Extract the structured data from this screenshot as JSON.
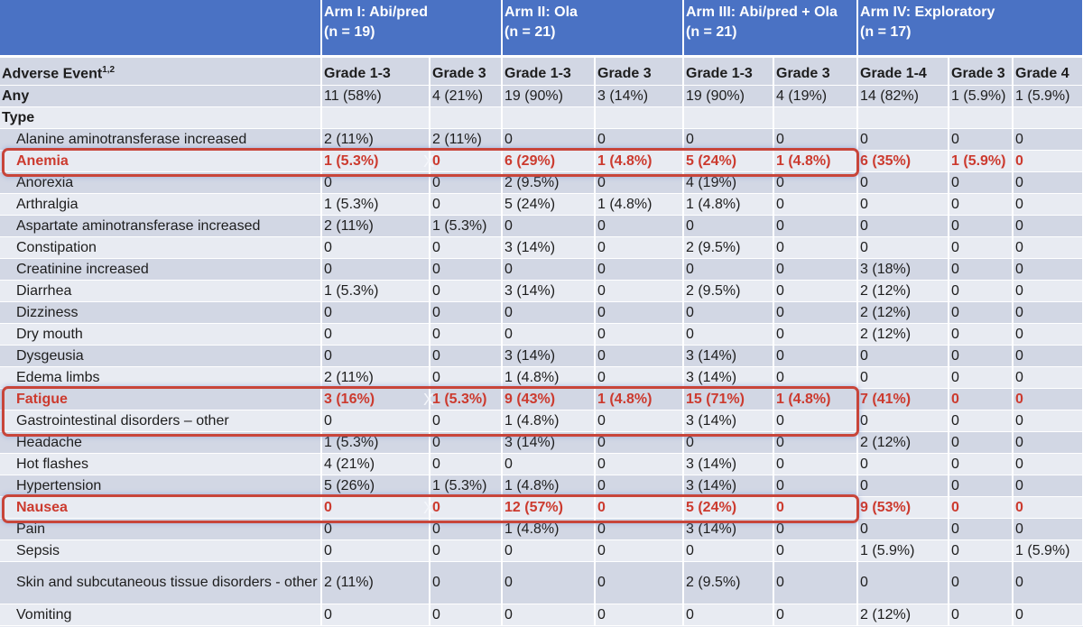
{
  "arms": [
    {
      "name": "Arm I: Abi/pred",
      "n": "(n = 19)"
    },
    {
      "name": "Arm II: Ola",
      "n": "(n = 21)"
    },
    {
      "name": "Arm III: Abi/pred + Ola",
      "n": "(n = 21)"
    },
    {
      "name": "Arm IV: Exploratory",
      "n": "(n = 17)"
    }
  ],
  "subheader": {
    "label": "Adverse Event",
    "footnote": "1,2",
    "grades": [
      "Grade 1-3",
      "Grade 3",
      "Grade 1-3",
      "Grade 3",
      "Grade 1-3",
      "Grade 3",
      "Grade 1-4",
      "Grade 3",
      "Grade 4"
    ]
  },
  "any_row": {
    "label": "Any",
    "values": [
      "11 (58%)",
      "4 (21%)",
      "19 (90%)",
      "3 (14%)",
      "19 (90%)",
      "4 (19%)",
      "14 (82%)",
      "1 (5.9%)",
      "1 (5.9%)"
    ]
  },
  "type_label": "Type",
  "rows": [
    {
      "label": "Alanine aminotransferase increased",
      "values": [
        "2 (11%)",
        "2 (11%)",
        "0",
        "0",
        "0",
        "0",
        "0",
        "0",
        "0"
      ]
    },
    {
      "label": "Anemia",
      "values": [
        "1 (5.3%)",
        "0",
        "6 (29%)",
        "1 (4.8%)",
        "5 (24%)",
        "1 (4.8%)",
        "6 (35%)",
        "1 (5.9%)",
        "0"
      ]
    },
    {
      "label": "Anorexia",
      "values": [
        "0",
        "0",
        "2 (9.5%)",
        "0",
        "4 (19%)",
        "0",
        "0",
        "0",
        "0"
      ]
    },
    {
      "label": "Arthralgia",
      "values": [
        "1 (5.3%)",
        "0",
        "5 (24%)",
        "1 (4.8%)",
        "1 (4.8%)",
        "0",
        "0",
        "0",
        "0"
      ]
    },
    {
      "label": "Aspartate aminotransferase increased",
      "values": [
        "2 (11%)",
        "1 (5.3%)",
        "0",
        "0",
        "0",
        "0",
        "0",
        "0",
        "0"
      ]
    },
    {
      "label": "Constipation",
      "values": [
        "0",
        "0",
        "3 (14%)",
        "0",
        "2 (9.5%)",
        "0",
        "0",
        "0",
        "0"
      ]
    },
    {
      "label": "Creatinine increased",
      "values": [
        "0",
        "0",
        "0",
        "0",
        "0",
        "0",
        "3 (18%)",
        "0",
        "0"
      ]
    },
    {
      "label": "Diarrhea",
      "values": [
        "1 (5.3%)",
        "0",
        "3 (14%)",
        "0",
        "2 (9.5%)",
        "0",
        "2 (12%)",
        "0",
        "0"
      ]
    },
    {
      "label": "Dizziness",
      "values": [
        "0",
        "0",
        "0",
        "0",
        "0",
        "0",
        "2 (12%)",
        "0",
        "0"
      ]
    },
    {
      "label": "Dry mouth",
      "values": [
        "0",
        "0",
        "0",
        "0",
        "0",
        "0",
        "2 (12%)",
        "0",
        "0"
      ]
    },
    {
      "label": "Dysgeusia",
      "values": [
        "0",
        "0",
        "3 (14%)",
        "0",
        "3 (14%)",
        "0",
        "0",
        "0",
        "0"
      ]
    },
    {
      "label": "Edema limbs",
      "values": [
        "2 (11%)",
        "0",
        "1 (4.8%)",
        "0",
        "3 (14%)",
        "0",
        "0",
        "0",
        "0"
      ]
    },
    {
      "label": "Fatigue",
      "values": [
        "3 (16%)",
        "1 (5.3%)",
        "9 (43%)",
        "1 (4.8%)",
        "15 (71%)",
        "1 (4.8%)",
        "7 (41%)",
        "0",
        "0"
      ]
    },
    {
      "label": "Gastrointestinal disorders – other",
      "values": [
        "0",
        "0",
        "1 (4.8%)",
        "0",
        "3 (14%)",
        "0",
        "0",
        "0",
        "0"
      ]
    },
    {
      "label": "Headache",
      "values": [
        "1 (5.3%)",
        "0",
        "3 (14%)",
        "0",
        "0",
        "0",
        "2 (12%)",
        "0",
        "0"
      ]
    },
    {
      "label": "Hot flashes",
      "values": [
        "4 (21%)",
        "0",
        "0",
        "0",
        "3 (14%)",
        "0",
        "0",
        "0",
        "0"
      ]
    },
    {
      "label": "Hypertension",
      "values": [
        "5 (26%)",
        "1 (5.3%)",
        "1 (4.8%)",
        "0",
        "3 (14%)",
        "0",
        "0",
        "0",
        "0"
      ]
    },
    {
      "label": "Nausea",
      "values": [
        "0",
        "0",
        "12 (57%)",
        "0",
        "5 (24%)",
        "0",
        "9 (53%)",
        "0",
        "0"
      ]
    },
    {
      "label": "Pain",
      "values": [
        "0",
        "0",
        "1 (4.8%)",
        "0",
        "3 (14%)",
        "0",
        "0",
        "0",
        "0"
      ]
    },
    {
      "label": "Sepsis",
      "values": [
        "0",
        "0",
        "0",
        "0",
        "0",
        "0",
        "1 (5.9%)",
        "0",
        "1 (5.9%)"
      ]
    },
    {
      "label": "Skin and subcutaneous tissue disorders - other",
      "values": [
        "2 (11%)",
        "0",
        "0",
        "0",
        "2 (9.5%)",
        "0",
        "0",
        "0",
        "0"
      ]
    },
    {
      "label": "Vomiting",
      "values": [
        "0",
        "0",
        "0",
        "0",
        "0",
        "0",
        "2 (12%)",
        "0",
        "0"
      ]
    }
  ],
  "highlights": [
    "Anemia",
    "Fatigue",
    "Nausea"
  ],
  "colors": {
    "header_blue": "#4a72c4",
    "highlight_red": "#cc3a2e",
    "box_red": "#c8453a"
  },
  "marker_glyph": "X"
}
